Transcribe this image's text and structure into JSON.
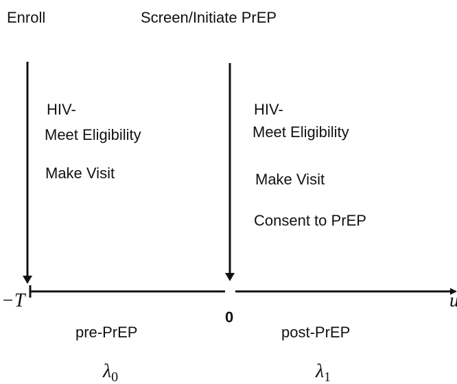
{
  "header": {
    "left": "Enroll",
    "right": "Screen/Initiate PrEP"
  },
  "left_criteria": [
    "HIV-",
    "Meet Eligibility",
    "Make Visit"
  ],
  "right_criteria": [
    "HIV-",
    "Meet Eligibility",
    "Make Visit",
    "Consent to PrEP"
  ],
  "axis": {
    "start": "−T",
    "zero": "0",
    "end": "u"
  },
  "periods": [
    {
      "name": "pre-PrEP",
      "rate": {
        "symbol": "λ",
        "subscript": "0"
      }
    },
    {
      "name": "post-PrEP",
      "rate": {
        "symbol": "λ",
        "subscript": "1"
      }
    }
  ]
}
